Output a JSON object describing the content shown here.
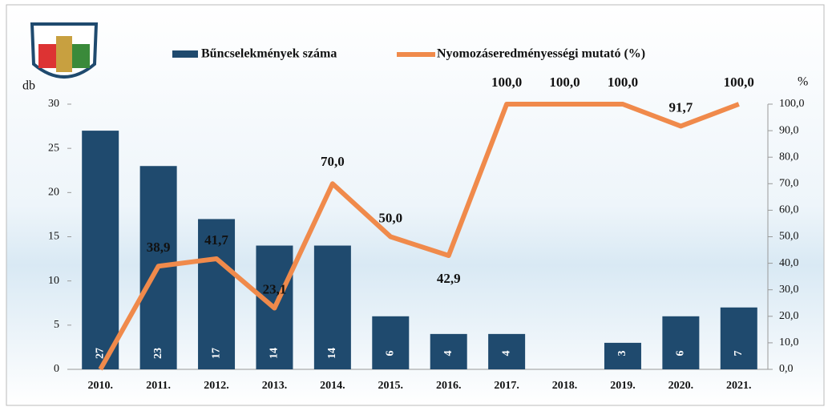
{
  "chart_data": {
    "type": "combo",
    "categories": [
      "2010.",
      "2011.",
      "2012.",
      "2013.",
      "2014.",
      "2015.",
      "2016.",
      "2017.",
      "2018.",
      "2019.",
      "2020.",
      "2021."
    ],
    "series": [
      {
        "name": "Bűncselekmények száma",
        "type": "bar",
        "color": "#1f4a6e",
        "values": [
          27,
          23,
          17,
          14,
          14,
          6,
          4,
          4,
          null,
          3,
          6,
          7
        ]
      },
      {
        "name": "Nyomozáseredményességi mutató (%)",
        "type": "line",
        "axis": "y2",
        "color": "#f08a4b",
        "values": [
          0,
          38.9,
          41.7,
          23.1,
          70.0,
          50.0,
          42.9,
          100.0,
          100.0,
          100.0,
          91.7,
          100.0
        ],
        "value_labels": [
          null,
          "38,9",
          "41,7",
          "23,1",
          "70,0",
          "50,0",
          "42,9",
          "100,0",
          "100,0",
          "100,0",
          "91,7",
          "100,0"
        ]
      }
    ],
    "ylabel": "db",
    "y2label": "%",
    "ylim": [
      0,
      30
    ],
    "yticks": [
      0,
      5,
      10,
      15,
      20,
      25,
      30
    ],
    "y2lim": [
      0,
      100
    ],
    "y2ticks": [
      {
        "value": 0,
        "label": "0,0"
      },
      {
        "value": 10,
        "label": "10,0"
      },
      {
        "value": 20,
        "label": "20,0"
      },
      {
        "value": 30,
        "label": "30,0"
      },
      {
        "value": 40,
        "label": "40,0"
      },
      {
        "value": 50,
        "label": "50,0"
      },
      {
        "value": 60,
        "label": "60,0"
      },
      {
        "value": 70,
        "label": "70,0"
      },
      {
        "value": 80,
        "label": "80,0"
      },
      {
        "value": 90,
        "label": "90,0"
      },
      {
        "value": 100,
        "label": "100,0"
      }
    ]
  }
}
